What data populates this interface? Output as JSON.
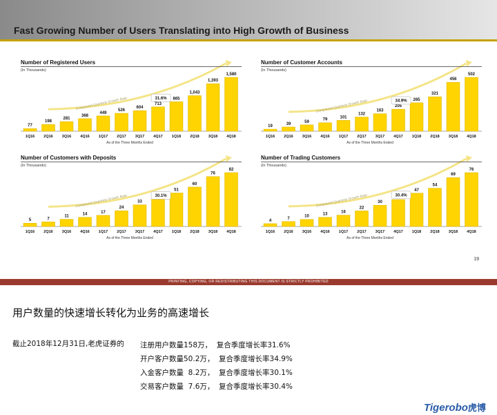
{
  "header": {
    "title": "Fast Growing Number of Users Translating into High Growth of Business"
  },
  "chart_data": [
    {
      "type": "bar",
      "title": "Number of Registered Users",
      "unit": "(In Thousands)",
      "categories": [
        "1Q16",
        "2Q16",
        "3Q16",
        "4Q16",
        "1Q17",
        "2Q17",
        "3Q17",
        "4Q17",
        "1Q18",
        "2Q18",
        "3Q18",
        "4Q18"
      ],
      "values": [
        77,
        198,
        281,
        368,
        449,
        526,
        604,
        713,
        865,
        1043,
        1393,
        1580
      ],
      "labels": [
        "77",
        "198",
        "281",
        "368",
        "449",
        "526",
        "604",
        "713",
        "865",
        "1,043",
        "1,393",
        "1,580"
      ],
      "growth_label": "Compound Quarterly Growth Rate",
      "growth_rate": "31.6%",
      "xlabel": "As of the Three Months Ended"
    },
    {
      "type": "bar",
      "title": "Number of Customer Accounts",
      "unit": "(In Thousands)",
      "categories": [
        "1Q16",
        "2Q16",
        "3Q16",
        "4Q16",
        "1Q17",
        "2Q17",
        "3Q17",
        "4Q17",
        "1Q18",
        "2Q18",
        "3Q18",
        "4Q18"
      ],
      "values": [
        19,
        39,
        59,
        79,
        101,
        132,
        163,
        205,
        265,
        321,
        456,
        502
      ],
      "labels": [
        "19",
        "39",
        "59",
        "79",
        "101",
        "132",
        "163",
        "205",
        "265",
        "321",
        "456",
        "502"
      ],
      "growth_label": "Compound Quarterly Growth Rate",
      "growth_rate": "34.9%",
      "xlabel": "As of the Three Months Ended"
    },
    {
      "type": "bar",
      "title": "Number of Customers with Deposits",
      "unit": "(In Thousands)",
      "categories": [
        "1Q16",
        "2Q16",
        "3Q16",
        "4Q16",
        "1Q17",
        "2Q17",
        "3Q17",
        "4Q17",
        "1Q18",
        "2Q18",
        "3Q18",
        "4Q18"
      ],
      "values": [
        5,
        7,
        11,
        14,
        17,
        24,
        33,
        42,
        51,
        60,
        76,
        82
      ],
      "labels": [
        "5",
        "7",
        "11",
        "14",
        "17",
        "24",
        "33",
        "42",
        "51",
        "60",
        "76",
        "82"
      ],
      "growth_label": "Compound Quarterly Growth Rate",
      "growth_rate": "30.1%",
      "xlabel": "As of the Three Months Ended"
    },
    {
      "type": "bar",
      "title": "Number of Trading Customers",
      "unit": "(In Thousands)",
      "categories": [
        "1Q16",
        "2Q16",
        "3Q16",
        "4Q16",
        "1Q17",
        "2Q17",
        "3Q17",
        "4Q17",
        "1Q18",
        "2Q18",
        "3Q18",
        "4Q18"
      ],
      "values": [
        4,
        7,
        10,
        13,
        16,
        22,
        30,
        38,
        47,
        54,
        69,
        76
      ],
      "labels": [
        "4",
        "7",
        "10",
        "13",
        "16",
        "22",
        "30",
        "38",
        "47",
        "54",
        "69",
        "76"
      ],
      "growth_label": "Compound Quarterly Growth Rate",
      "growth_rate": "30.4%",
      "xlabel": "As of the Three Months Ended"
    }
  ],
  "page_number": "19",
  "footer": {
    "notice": "PRINTING, COPYING, OR REDISTRIBUTING THIS DOCUMENT IS STRICTLY PROHIBITED"
  },
  "summary": {
    "heading": "用户数量的快速增长转化为业务的高速增长",
    "intro": "截止2018年12月31日,老虎证券的",
    "lines": [
      "注册用户数量158万，  复合季度增长率31.6%",
      "开户客户数量50.2万，  复合季度增长率34.9%",
      "入金客户数量  8.2万，  复合季度增长率30.1%",
      "交易客户数量  7.6万，  复合季度增长率30.4%"
    ]
  },
  "logo": {
    "text": "Tigerobo",
    "cn": "虎博"
  },
  "colors": {
    "bar": "#ffd400",
    "bar_edge": "#d9b300",
    "arrow": "#f4e486",
    "footer": "#9a3a2e",
    "logo": "#2a5ca8"
  }
}
